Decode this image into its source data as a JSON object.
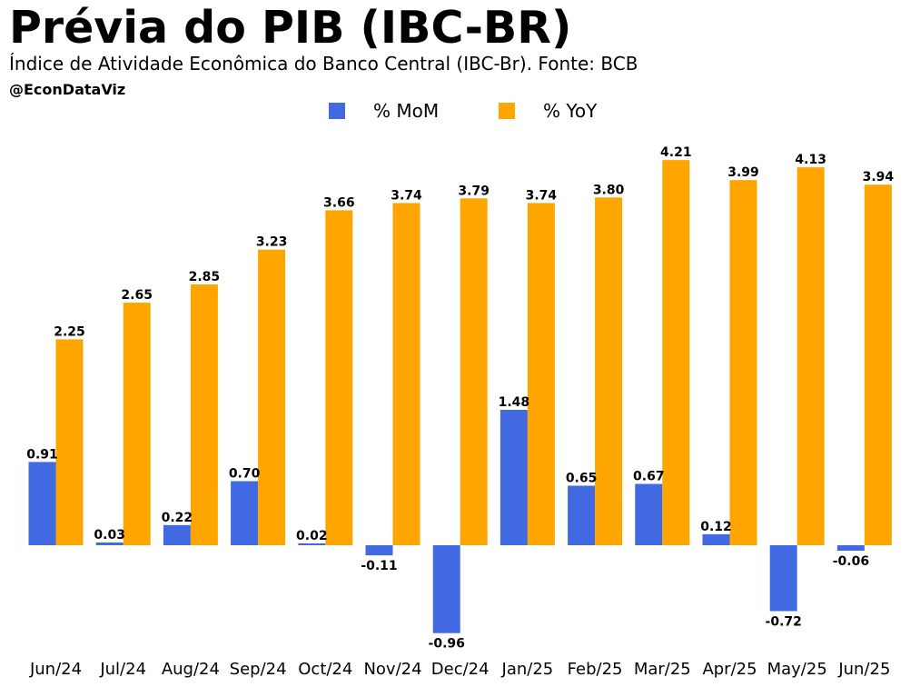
{
  "header": {
    "title": "Prévia do PIB (IBC-BR)",
    "subtitle": "Índice de Atividade Econômica do Banco Central (IBC-Br). Fonte: BCB",
    "handle": "@EconDataViz"
  },
  "colors": {
    "mom": "#4169E1",
    "yoy": "#FFA500"
  },
  "chart_data": {
    "type": "bar",
    "title": "Prévia do PIB (IBC-BR)",
    "subtitle": "Índice de Atividade Econômica do Banco Central (IBC-Br). Fonte: BCB",
    "xlabel": "",
    "ylabel": "",
    "grid": false,
    "legend_position": "top-center",
    "ylim": [
      -1.15,
      4.45
    ],
    "categories": [
      "Jun/24",
      "Jul/24",
      "Aug/24",
      "Sep/24",
      "Oct/24",
      "Nov/24",
      "Dec/24",
      "Jan/25",
      "Feb/25",
      "Mar/25",
      "Apr/25",
      "May/25",
      "Jun/25"
    ],
    "series": [
      {
        "name": "% MoM",
        "color": "#4169E1",
        "values": [
          0.91,
          0.03,
          0.22,
          0.7,
          0.02,
          -0.11,
          -0.96,
          1.48,
          0.65,
          0.67,
          0.12,
          -0.72,
          -0.06
        ]
      },
      {
        "name": "% YoY",
        "color": "#FFA500",
        "values": [
          2.25,
          2.65,
          2.85,
          3.23,
          3.66,
          3.74,
          3.79,
          3.74,
          3.8,
          4.21,
          3.99,
          4.13,
          3.94
        ]
      }
    ]
  }
}
